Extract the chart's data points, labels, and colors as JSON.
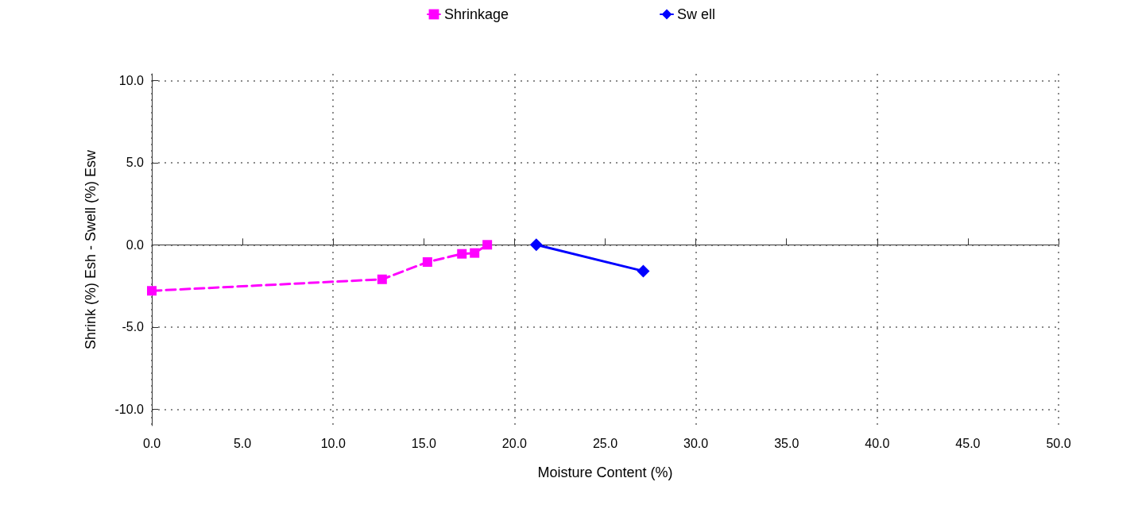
{
  "chart_data": {
    "type": "line",
    "xlabel": "Moisture Content (%)",
    "ylabel": "Shrink (%) Esh - Swell (%) Esw",
    "xlim": [
      0,
      50
    ],
    "ylim": [
      -11,
      10.4
    ],
    "xticks": [
      {
        "value": 0,
        "label": "0.0"
      },
      {
        "value": 5,
        "label": "5.0"
      },
      {
        "value": 10,
        "label": "10.0"
      },
      {
        "value": 15,
        "label": "15.0"
      },
      {
        "value": 20,
        "label": "20.0"
      },
      {
        "value": 25,
        "label": "25.0"
      },
      {
        "value": 30,
        "label": "30.0"
      },
      {
        "value": 35,
        "label": "35.0"
      },
      {
        "value": 40,
        "label": "40.0"
      },
      {
        "value": 45,
        "label": "45.0"
      },
      {
        "value": 50,
        "label": "50.0"
      }
    ],
    "yticks": [
      {
        "value": -10,
        "label": "-10.0"
      },
      {
        "value": -5,
        "label": "-5.0"
      },
      {
        "value": 0,
        "label": "0.0"
      },
      {
        "value": 5,
        "label": "5.0"
      },
      {
        "value": 10,
        "label": "10.0"
      }
    ],
    "grid": true,
    "legend": "top",
    "series": [
      {
        "name": "Shrinkage",
        "color": "#ff00ff",
        "marker": "square",
        "line_style": "dashed",
        "x": [
          0,
          12.7,
          15.2,
          17.1,
          17.8,
          18.5
        ],
        "values": [
          -2.8,
          -2.1,
          -1.05,
          -0.55,
          -0.5,
          0.0
        ]
      },
      {
        "name": "Sw ell",
        "color": "#0000ff",
        "marker": "diamond",
        "line_style": "solid",
        "x": [
          21.2,
          27.1
        ],
        "values": [
          0.0,
          -1.6
        ]
      }
    ]
  }
}
